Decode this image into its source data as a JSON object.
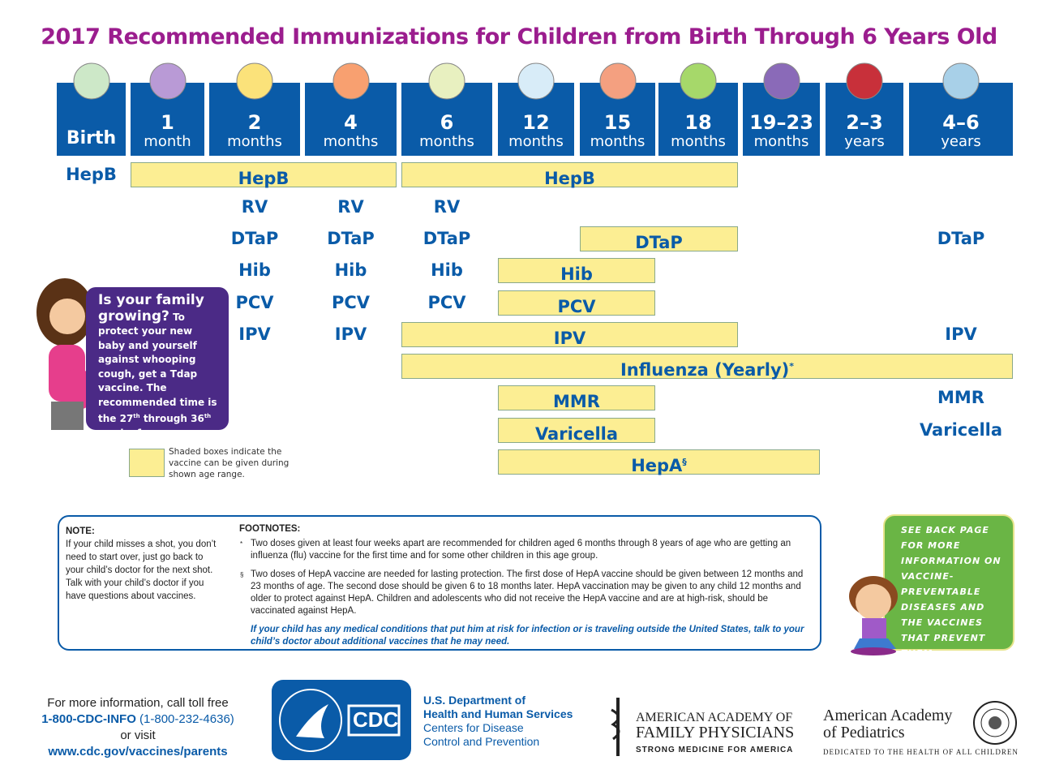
{
  "title": "2017 Recommended Immunizations for Children from Birth Through 6 Years Old",
  "colors": {
    "header_blue": "#0a5ba8",
    "title_purple": "#9b1d8e",
    "shaded_yellow": "#fcee93",
    "callout_purple": "#4b2a86",
    "callout_green": "#6ab545"
  },
  "age_columns": [
    {
      "num": "Birth",
      "unit": "",
      "icon": "stroller-icon"
    },
    {
      "num": "1",
      "unit": "month",
      "icon": "rattle-icon"
    },
    {
      "num": "2",
      "unit": "months",
      "icon": "rubber-duck-icon"
    },
    {
      "num": "4",
      "unit": "months",
      "icon": "teething-rings-icon"
    },
    {
      "num": "6",
      "unit": "months",
      "icon": "bib-icon"
    },
    {
      "num": "12",
      "unit": "months",
      "icon": "booties-icon"
    },
    {
      "num": "15",
      "unit": "months",
      "icon": "ball-icon"
    },
    {
      "num": "18",
      "unit": "months",
      "icon": "stacking-rings-icon"
    },
    {
      "num": "19–23",
      "unit": "months",
      "icon": "toy-train-icon"
    },
    {
      "num": "2–3",
      "unit": "years",
      "icon": "tricycle-icon"
    },
    {
      "num": "4–6",
      "unit": "years",
      "icon": "book-icon"
    }
  ],
  "shaded_bars": [
    {
      "label": "HepB",
      "sup": "",
      "from": "1 month",
      "to": "4 months"
    },
    {
      "label": "HepB",
      "sup": "",
      "from": "6 months",
      "to": "18 months"
    },
    {
      "label": "DTaP",
      "sup": "",
      "from": "15 months",
      "to": "18 months"
    },
    {
      "label": "Hib",
      "sup": "",
      "from": "12 months",
      "to": "15 months"
    },
    {
      "label": "PCV",
      "sup": "",
      "from": "12 months",
      "to": "15 months"
    },
    {
      "label": "IPV",
      "sup": "",
      "from": "6 months",
      "to": "18 months"
    },
    {
      "label": "Influenza (Yearly)",
      "sup": "*",
      "from": "6 months",
      "to": "4–6 years"
    },
    {
      "label": "MMR",
      "sup": "",
      "from": "12 months",
      "to": "15 months"
    },
    {
      "label": "Varicella",
      "sup": "",
      "from": "12 months",
      "to": "15 months"
    },
    {
      "label": "HepA",
      "sup": "§",
      "from": "12 months",
      "to": "19–23 months"
    }
  ],
  "dose_labels": [
    {
      "label": "HepB",
      "age": "Birth"
    },
    {
      "label": "RV",
      "age": "2 months"
    },
    {
      "label": "RV",
      "age": "4 months"
    },
    {
      "label": "RV",
      "age": "6 months"
    },
    {
      "label": "DTaP",
      "age": "2 months"
    },
    {
      "label": "DTaP",
      "age": "4 months"
    },
    {
      "label": "DTaP",
      "age": "6 months"
    },
    {
      "label": "DTaP",
      "age": "4–6 years"
    },
    {
      "label": "Hib",
      "age": "2 months"
    },
    {
      "label": "Hib",
      "age": "4 months"
    },
    {
      "label": "Hib",
      "age": "6 months"
    },
    {
      "label": "PCV",
      "age": "2 months"
    },
    {
      "label": "PCV",
      "age": "4 months"
    },
    {
      "label": "PCV",
      "age": "6 months"
    },
    {
      "label": "IPV",
      "age": "2 months"
    },
    {
      "label": "IPV",
      "age": "4 months"
    },
    {
      "label": "IPV",
      "age": "4–6 years"
    },
    {
      "label": "MMR",
      "age": "4–6 years"
    },
    {
      "label": "Varicella",
      "age": "4–6 years"
    }
  ],
  "pregnancy_callout": {
    "headline1": "Is your family",
    "headline2": "growing?",
    "body_a": " To protect your new baby and yourself against whooping cough, get a Tdap vaccine. The recommended time is the 27",
    "sup1": "th",
    "body_b": " through 36",
    "sup2": "th",
    "body_c": " week of pregnancy. Talk to your doctor for more details."
  },
  "legend": "Shaded boxes indicate the vaccine can be given during shown age range.",
  "note": {
    "heading": "NOTE:",
    "text": "If your child misses a shot, you don’t need to start over, just go back to your child’s doctor for the next shot. Talk with your child’s doctor if you have questions about vaccines."
  },
  "footnotes": {
    "heading": "FOOTNOTES:",
    "items": [
      {
        "mark": "*",
        "text": "Two doses given at least four weeks apart are recommended for children aged 6 months through 8 years of age who are getting an influenza (flu) vaccine for the first time and for some other children in this age group."
      },
      {
        "mark": "§",
        "text": "Two doses of HepA vaccine are needed for lasting protection. The first dose of HepA vaccine should be given between 12 months and 23 months of age. The second dose should be given 6 to 18 months later.  HepA vaccination may be given to any child 12 months and older to protect against HepA. Children and adolescents who did not receive the HepA vaccine and are at high-risk, should be vaccinated against HepA."
      }
    ],
    "emphasis": "If your child has any medical conditions that put him at risk for infection or is traveling outside the United States, talk to your child’s doctor about additional vaccines that he may need."
  },
  "green_callout": "SEE BACK PAGE FOR MORE INFORMATION ON VACCINE-PREVENTABLE DISEASES AND THE VACCINES THAT PREVENT THEM.",
  "contact": {
    "line1": "For more information, call toll free",
    "phone": "1-800-CDC-INFO",
    "phone_alt": " (1-800-232-4636)",
    "line3": "or visit",
    "url": "www.cdc.gov/vaccines/parents"
  },
  "logos": {
    "cdc": "CDC",
    "hhs": [
      "U.S. Department of",
      "Health and Human Services",
      "Centers for Disease",
      "Control and Prevention"
    ],
    "aafp": [
      "AMERICAN ACADEMY OF",
      "FAMILY PHYSICIANS",
      "STRONG MEDICINE FOR AMERICA"
    ],
    "aap": [
      "American Academy",
      "of Pediatrics",
      "DEDICATED TO THE HEALTH OF ALL CHILDREN"
    ]
  }
}
